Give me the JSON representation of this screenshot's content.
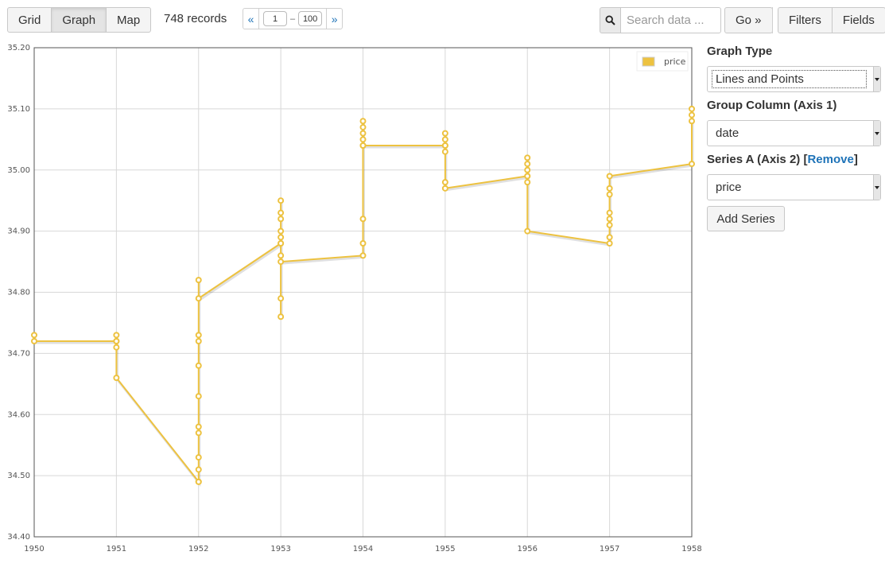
{
  "toolbar": {
    "views": [
      {
        "label": "Grid",
        "active": false
      },
      {
        "label": "Graph",
        "active": true
      },
      {
        "label": "Map",
        "active": false
      }
    ],
    "record_count": "748 records",
    "pager": {
      "prev": "«",
      "next": "»",
      "from": "1",
      "to": "100",
      "separator": "–"
    },
    "search": {
      "icon": "search-icon",
      "placeholder": "Search data ..."
    },
    "go_label": "Go »",
    "filters_label": "Filters",
    "fields_label": "Fields"
  },
  "editor": {
    "graph_type_label": "Graph Type",
    "graph_type_value": "Lines and Points",
    "group_column_label": "Group Column (Axis 1)",
    "group_column_value": "date",
    "series_label_prefix": "Series A (Axis 2) [",
    "series_remove_label": "Remove",
    "series_label_suffix": "]",
    "series_value": "price",
    "add_series_label": "Add Series"
  },
  "chart_data": {
    "type": "line",
    "title": "",
    "xlabel": "",
    "ylabel": "",
    "color": "#edc240",
    "xlim": [
      1950,
      1958
    ],
    "ylim": [
      34.4,
      35.2
    ],
    "x_ticks": [
      "1950",
      "1951",
      "1952",
      "1953",
      "1954",
      "1955",
      "1956",
      "1957",
      "1958"
    ],
    "y_ticks": [
      "34.40",
      "34.50",
      "34.60",
      "34.70",
      "34.80",
      "34.90",
      "35.00",
      "35.10",
      "35.20"
    ],
    "grid": true,
    "legend_position": "top-right",
    "series": [
      {
        "name": "price",
        "points": [
          [
            1950,
            34.73
          ],
          [
            1950,
            34.72
          ],
          [
            1951,
            34.72
          ],
          [
            1951,
            34.73
          ],
          [
            1951,
            34.72
          ],
          [
            1951,
            34.71
          ],
          [
            1951,
            34.66
          ],
          [
            1952,
            34.49
          ],
          [
            1952,
            34.49
          ],
          [
            1952,
            34.51
          ],
          [
            1952,
            34.53
          ],
          [
            1952,
            34.57
          ],
          [
            1952,
            34.58
          ],
          [
            1952,
            34.63
          ],
          [
            1952,
            34.68
          ],
          [
            1952,
            34.72
          ],
          [
            1952,
            34.73
          ],
          [
            1952,
            34.82
          ],
          [
            1952,
            34.79
          ],
          [
            1953,
            34.88
          ],
          [
            1953,
            34.95
          ],
          [
            1953,
            34.93
          ],
          [
            1953,
            34.92
          ],
          [
            1953,
            34.9
          ],
          [
            1953,
            34.89
          ],
          [
            1953,
            34.88
          ],
          [
            1953,
            34.86
          ],
          [
            1953,
            34.79
          ],
          [
            1953,
            34.76
          ],
          [
            1953,
            34.85
          ],
          [
            1954,
            34.86
          ],
          [
            1954,
            34.88
          ],
          [
            1954,
            34.92
          ],
          [
            1954,
            35.04
          ],
          [
            1954,
            35.05
          ],
          [
            1954,
            35.06
          ],
          [
            1954,
            35.07
          ],
          [
            1954,
            35.08
          ],
          [
            1954,
            35.04
          ],
          [
            1955,
            35.04
          ],
          [
            1955,
            35.06
          ],
          [
            1955,
            35.05
          ],
          [
            1955,
            35.04
          ],
          [
            1955,
            35.03
          ],
          [
            1955,
            34.98
          ],
          [
            1955,
            34.97
          ],
          [
            1956,
            34.99
          ],
          [
            1956,
            35.02
          ],
          [
            1956,
            35.01
          ],
          [
            1956,
            35.0
          ],
          [
            1956,
            34.99
          ],
          [
            1956,
            34.98
          ],
          [
            1956,
            34.9
          ],
          [
            1957,
            34.88
          ],
          [
            1957,
            34.89
          ],
          [
            1957,
            34.91
          ],
          [
            1957,
            34.92
          ],
          [
            1957,
            34.93
          ],
          [
            1957,
            34.96
          ],
          [
            1957,
            34.97
          ],
          [
            1957,
            34.99
          ],
          [
            1958,
            35.01
          ],
          [
            1958,
            35.08
          ],
          [
            1958,
            35.09
          ],
          [
            1958,
            35.1
          ]
        ]
      }
    ]
  }
}
